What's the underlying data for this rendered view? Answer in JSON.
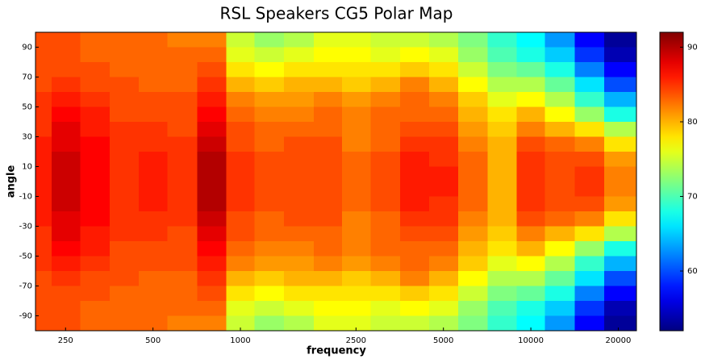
{
  "chart_data": {
    "type": "heatmap",
    "title": "RSL Speakers CG5 Polar Map",
    "x_label": "frequency",
    "y_label": "angle",
    "x": [
      200,
      250,
      315,
      400,
      500,
      630,
      800,
      1000,
      1250,
      1600,
      2000,
      2500,
      3150,
      4000,
      5000,
      6300,
      8000,
      10000,
      12500,
      16000,
      20000
    ],
    "y": [
      95,
      85,
      75,
      65,
      55,
      45,
      35,
      25,
      15,
      5,
      -5,
      -15,
      -25,
      -35,
      -45,
      -55,
      -65,
      -75,
      -85,
      -95
    ],
    "z": [
      [
        84,
        84,
        83,
        83,
        83,
        82,
        82,
        75,
        73,
        74,
        76,
        76,
        75,
        75,
        74,
        72,
        69,
        67,
        63,
        57,
        53
      ],
      [
        84,
        84,
        83,
        83,
        83,
        83,
        83,
        76,
        75,
        76,
        77,
        77,
        76,
        77,
        76,
        73,
        70,
        68,
        65,
        59,
        54
      ],
      [
        84,
        84,
        84,
        83,
        83,
        83,
        84,
        78,
        77,
        78,
        78,
        78,
        78,
        79,
        78,
        75,
        72,
        71,
        68,
        62,
        57
      ],
      [
        84,
        85,
        84,
        84,
        83,
        83,
        85,
        80,
        79,
        80,
        80,
        79,
        80,
        82,
        80,
        77,
        74,
        74,
        71,
        66,
        60
      ],
      [
        85,
        86,
        85,
        84,
        84,
        84,
        86,
        82,
        81,
        81,
        82,
        81,
        82,
        83,
        82,
        79,
        76,
        77,
        74,
        69,
        64
      ],
      [
        85,
        87,
        86,
        84,
        84,
        84,
        87,
        83,
        82,
        82,
        83,
        82,
        83,
        83,
        83,
        80,
        78,
        80,
        77,
        73,
        68
      ],
      [
        85,
        88,
        86,
        85,
        85,
        84,
        88,
        84,
        83,
        83,
        83,
        82,
        83,
        84,
        84,
        81,
        79,
        82,
        80,
        78,
        74
      ],
      [
        86,
        88,
        87,
        85,
        85,
        85,
        89,
        84,
        83,
        84,
        84,
        82,
        83,
        85,
        85,
        82,
        80,
        84,
        83,
        82,
        78
      ],
      [
        86,
        89,
        87,
        85,
        86,
        85,
        90,
        85,
        84,
        84,
        84,
        83,
        84,
        86,
        85,
        83,
        80,
        85,
        84,
        84,
        81
      ],
      [
        86,
        89,
        87,
        85,
        86,
        85,
        90,
        85,
        84,
        84,
        84,
        83,
        84,
        86,
        86,
        83,
        80,
        85,
        84,
        85,
        82
      ],
      [
        86,
        89,
        87,
        85,
        86,
        85,
        90,
        85,
        84,
        84,
        84,
        83,
        84,
        86,
        86,
        83,
        80,
        85,
        84,
        85,
        82
      ],
      [
        86,
        89,
        87,
        85,
        86,
        85,
        90,
        85,
        84,
        84,
        84,
        83,
        84,
        86,
        85,
        83,
        80,
        85,
        84,
        84,
        81
      ],
      [
        86,
        88,
        87,
        85,
        85,
        85,
        89,
        84,
        83,
        84,
        84,
        82,
        83,
        85,
        85,
        82,
        80,
        84,
        83,
        82,
        78
      ],
      [
        85,
        88,
        86,
        85,
        85,
        84,
        88,
        84,
        83,
        83,
        83,
        82,
        83,
        84,
        84,
        81,
        79,
        82,
        80,
        78,
        74
      ],
      [
        85,
        87,
        86,
        84,
        84,
        84,
        87,
        83,
        82,
        82,
        83,
        82,
        83,
        83,
        83,
        80,
        78,
        80,
        77,
        73,
        68
      ],
      [
        85,
        86,
        85,
        84,
        84,
        84,
        86,
        82,
        81,
        81,
        82,
        81,
        82,
        83,
        82,
        79,
        76,
        77,
        74,
        69,
        64
      ],
      [
        84,
        85,
        84,
        84,
        83,
        83,
        85,
        80,
        79,
        80,
        80,
        79,
        80,
        82,
        80,
        77,
        74,
        74,
        71,
        66,
        60
      ],
      [
        84,
        84,
        84,
        83,
        83,
        83,
        84,
        78,
        77,
        78,
        78,
        78,
        78,
        79,
        78,
        75,
        72,
        71,
        68,
        62,
        57
      ],
      [
        84,
        84,
        83,
        83,
        83,
        83,
        83,
        76,
        75,
        76,
        77,
        77,
        76,
        77,
        76,
        73,
        70,
        68,
        65,
        59,
        54
      ],
      [
        84,
        84,
        83,
        83,
        83,
        82,
        82,
        75,
        73,
        74,
        76,
        76,
        75,
        75,
        74,
        72,
        69,
        67,
        63,
        57,
        53
      ]
    ],
    "xscale": "log",
    "xlim": [
      197,
      23100
    ],
    "xticks": [
      250,
      500,
      1000,
      2500,
      5000,
      10000,
      20000
    ],
    "ylim": [
      -100,
      100
    ],
    "yticks": [
      90,
      70,
      50,
      30,
      10,
      -10,
      -30,
      -50,
      -70,
      -90
    ],
    "colormap": "jet",
    "clim": [
      52,
      92
    ],
    "cticks": [
      60,
      70,
      80,
      90
    ]
  }
}
